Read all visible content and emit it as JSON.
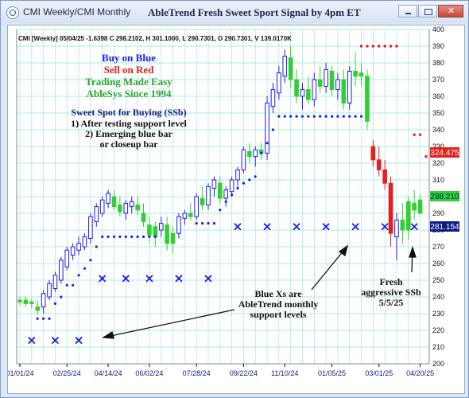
{
  "window": {
    "app_title": "CMI Weekly/CMI Monthly",
    "center_title": "AbleTrend Fresh Sweet Sport Signal by 4pm ET"
  },
  "header": {
    "info": "CMI [Weekly] 05/04/25 -1.6398 C 298.2102, H 301.1000, L 290.7301, O 290.7301, V 139.0170K"
  },
  "legend_block": {
    "buy": "Buy on Blue",
    "sell": "Sell on Red",
    "trading": "Trading Made Easy",
    "since": "AbleSys Since 1994",
    "ssb_title": "Sweet Spot for Buying (SSb)",
    "ssb_1": "1) After testing support level",
    "ssb_2": "2) Emerging blue bar",
    "ssb_3": "or closeup bar"
  },
  "annotations": {
    "blue_x_1": "Blue Xs are",
    "blue_x_2": "AbleTrend monthly",
    "blue_x_3": "support levels",
    "fresh_1": "Fresh",
    "fresh_2": "aggressive SSb",
    "fresh_3": "5/5/25"
  },
  "price_labels": {
    "red": "324.475",
    "green": "298.210",
    "navy": "281.154"
  },
  "colors": {
    "blue": "#1a1aee",
    "red": "#e41f1f",
    "green": "#2fd12f",
    "navy": "#0c1a86",
    "grid": "#8fe3e3"
  },
  "chart_data": {
    "type": "candlestick",
    "title": "AbleTrend Fresh Sweet Sport Signal by 4pm ET",
    "symbol": "CMI",
    "period": "Weekly",
    "ylim": [
      200,
      400
    ],
    "yticks": [
      200,
      210,
      220,
      230,
      240,
      250,
      260,
      270,
      280,
      290,
      300,
      310,
      320,
      330,
      340,
      350,
      360,
      370,
      380,
      390,
      400
    ],
    "x_tick_labels": [
      "01/01/24",
      "02/25/24",
      "04/14/24",
      "06/02/24",
      "07/28/24",
      "09/22/24",
      "11/10/24",
      "01/05/25",
      "03/01/25",
      "04/20/25"
    ],
    "x_tick_index": [
      0,
      8,
      15,
      22,
      30,
      38,
      45,
      53,
      61,
      68
    ],
    "candles": [
      {
        "o": 237,
        "h": 240,
        "l": 235,
        "c": 238,
        "col": "g"
      },
      {
        "o": 236,
        "h": 240,
        "l": 234,
        "c": 238,
        "col": "g"
      },
      {
        "o": 237,
        "h": 239,
        "l": 233,
        "c": 236,
        "col": "g"
      },
      {
        "o": 232,
        "h": 238,
        "l": 229,
        "c": 234,
        "col": "g"
      },
      {
        "o": 234,
        "h": 244,
        "l": 230,
        "c": 242,
        "col": "b"
      },
      {
        "o": 240,
        "h": 250,
        "l": 238,
        "c": 248,
        "col": "b"
      },
      {
        "o": 245,
        "h": 255,
        "l": 243,
        "c": 253,
        "col": "b"
      },
      {
        "o": 250,
        "h": 264,
        "l": 248,
        "c": 262,
        "col": "b"
      },
      {
        "o": 258,
        "h": 270,
        "l": 256,
        "c": 268,
        "col": "b"
      },
      {
        "o": 265,
        "h": 272,
        "l": 262,
        "c": 270,
        "col": "b"
      },
      {
        "o": 268,
        "h": 276,
        "l": 265,
        "c": 272,
        "col": "b"
      },
      {
        "o": 270,
        "h": 278,
        "l": 268,
        "c": 276,
        "col": "b"
      },
      {
        "o": 275,
        "h": 290,
        "l": 272,
        "c": 288,
        "col": "b"
      },
      {
        "o": 285,
        "h": 296,
        "l": 282,
        "c": 294,
        "col": "b"
      },
      {
        "o": 290,
        "h": 300,
        "l": 288,
        "c": 298,
        "col": "b"
      },
      {
        "o": 296,
        "h": 304,
        "l": 293,
        "c": 302,
        "col": "b"
      },
      {
        "o": 300,
        "h": 304,
        "l": 292,
        "c": 294,
        "col": "g"
      },
      {
        "o": 295,
        "h": 300,
        "l": 288,
        "c": 291,
        "col": "g"
      },
      {
        "o": 290,
        "h": 298,
        "l": 286,
        "c": 296,
        "col": "b"
      },
      {
        "o": 294,
        "h": 300,
        "l": 290,
        "c": 297,
        "col": "b"
      },
      {
        "o": 295,
        "h": 300,
        "l": 289,
        "c": 292,
        "col": "g"
      },
      {
        "o": 290,
        "h": 296,
        "l": 282,
        "c": 285,
        "col": "g"
      },
      {
        "o": 283,
        "h": 288,
        "l": 272,
        "c": 277,
        "col": "g"
      },
      {
        "o": 276,
        "h": 285,
        "l": 270,
        "c": 282,
        "col": "g"
      },
      {
        "o": 280,
        "h": 288,
        "l": 276,
        "c": 284,
        "col": "b"
      },
      {
        "o": 283,
        "h": 288,
        "l": 268,
        "c": 272,
        "col": "g"
      },
      {
        "o": 272,
        "h": 282,
        "l": 266,
        "c": 278,
        "col": "g"
      },
      {
        "o": 278,
        "h": 290,
        "l": 275,
        "c": 288,
        "col": "b"
      },
      {
        "o": 287,
        "h": 292,
        "l": 283,
        "c": 290,
        "col": "b"
      },
      {
        "o": 290,
        "h": 296,
        "l": 286,
        "c": 288,
        "col": "g"
      },
      {
        "o": 288,
        "h": 302,
        "l": 286,
        "c": 300,
        "col": "b"
      },
      {
        "o": 299,
        "h": 306,
        "l": 292,
        "c": 295,
        "col": "g"
      },
      {
        "o": 295,
        "h": 308,
        "l": 292,
        "c": 306,
        "col": "b"
      },
      {
        "o": 305,
        "h": 312,
        "l": 300,
        "c": 310,
        "col": "b"
      },
      {
        "o": 308,
        "h": 312,
        "l": 296,
        "c": 299,
        "col": "g"
      },
      {
        "o": 299,
        "h": 306,
        "l": 294,
        "c": 304,
        "col": "b"
      },
      {
        "o": 303,
        "h": 312,
        "l": 300,
        "c": 310,
        "col": "b"
      },
      {
        "o": 310,
        "h": 318,
        "l": 306,
        "c": 316,
        "col": "b"
      },
      {
        "o": 316,
        "h": 330,
        "l": 314,
        "c": 328,
        "col": "b"
      },
      {
        "o": 327,
        "h": 332,
        "l": 320,
        "c": 324,
        "col": "g"
      },
      {
        "o": 324,
        "h": 330,
        "l": 318,
        "c": 328,
        "col": "b"
      },
      {
        "o": 328,
        "h": 332,
        "l": 322,
        "c": 326,
        "col": "g"
      },
      {
        "o": 326,
        "h": 360,
        "l": 322,
        "c": 356,
        "col": "b"
      },
      {
        "o": 354,
        "h": 368,
        "l": 350,
        "c": 364,
        "col": "b"
      },
      {
        "o": 362,
        "h": 378,
        "l": 358,
        "c": 374,
        "col": "b"
      },
      {
        "o": 372,
        "h": 388,
        "l": 368,
        "c": 384,
        "col": "b"
      },
      {
        "o": 383,
        "h": 390,
        "l": 365,
        "c": 370,
        "col": "g"
      },
      {
        "o": 370,
        "h": 376,
        "l": 356,
        "c": 360,
        "col": "g"
      },
      {
        "o": 360,
        "h": 368,
        "l": 352,
        "c": 364,
        "col": "b"
      },
      {
        "o": 364,
        "h": 372,
        "l": 355,
        "c": 358,
        "col": "g"
      },
      {
        "o": 358,
        "h": 374,
        "l": 354,
        "c": 370,
        "col": "b"
      },
      {
        "o": 370,
        "h": 378,
        "l": 362,
        "c": 366,
        "col": "g"
      },
      {
        "o": 366,
        "h": 380,
        "l": 362,
        "c": 376,
        "col": "b"
      },
      {
        "o": 375,
        "h": 378,
        "l": 360,
        "c": 364,
        "col": "g"
      },
      {
        "o": 364,
        "h": 374,
        "l": 358,
        "c": 370,
        "col": "b"
      },
      {
        "o": 370,
        "h": 376,
        "l": 352,
        "c": 356,
        "col": "g"
      },
      {
        "o": 356,
        "h": 378,
        "l": 352,
        "c": 375,
        "col": "b"
      },
      {
        "o": 375,
        "h": 386,
        "l": 366,
        "c": 372,
        "col": "g"
      },
      {
        "o": 372,
        "h": 380,
        "l": 366,
        "c": 374,
        "col": "g"
      },
      {
        "o": 372,
        "h": 376,
        "l": 340,
        "c": 345,
        "col": "g"
      },
      {
        "o": 330,
        "h": 334,
        "l": 318,
        "c": 322,
        "col": "r"
      },
      {
        "o": 322,
        "h": 330,
        "l": 312,
        "c": 316,
        "col": "r"
      },
      {
        "o": 316,
        "h": 322,
        "l": 304,
        "c": 308,
        "col": "r"
      },
      {
        "o": 308,
        "h": 312,
        "l": 270,
        "c": 278,
        "col": "r"
      },
      {
        "o": 276,
        "h": 290,
        "l": 262,
        "c": 286,
        "col": "b"
      },
      {
        "o": 286,
        "h": 296,
        "l": 272,
        "c": 280,
        "col": "g"
      },
      {
        "o": 280,
        "h": 300,
        "l": 274,
        "c": 297,
        "col": "g"
      },
      {
        "o": 292,
        "h": 304,
        "l": 286,
        "c": 296,
        "col": "g"
      },
      {
        "o": 290,
        "h": 301,
        "l": 290,
        "c": 298,
        "col": "g"
      }
    ],
    "blue_dots": [
      {
        "i": 3,
        "v": 227
      },
      {
        "i": 4,
        "v": 227
      },
      {
        "i": 5,
        "v": 227
      },
      {
        "i": 6,
        "v": 236
      },
      {
        "i": 7,
        "v": 240
      },
      {
        "i": 8,
        "v": 247
      },
      {
        "i": 9,
        "v": 247
      },
      {
        "i": 10,
        "v": 253
      },
      {
        "i": 11,
        "v": 257
      },
      {
        "i": 12,
        "v": 262
      },
      {
        "i": 13,
        "v": 270
      },
      {
        "i": 14,
        "v": 276
      },
      {
        "i": 15,
        "v": 276
      },
      {
        "i": 16,
        "v": 276
      },
      {
        "i": 17,
        "v": 276
      },
      {
        "i": 18,
        "v": 276
      },
      {
        "i": 19,
        "v": 276
      },
      {
        "i": 20,
        "v": 276
      },
      {
        "i": 21,
        "v": 276
      },
      {
        "i": 22,
        "v": 276
      },
      {
        "i": 23,
        "v": 276
      },
      {
        "i": 30,
        "v": 284
      },
      {
        "i": 31,
        "v": 284
      },
      {
        "i": 32,
        "v": 284
      },
      {
        "i": 33,
        "v": 284
      },
      {
        "i": 34,
        "v": 292
      },
      {
        "i": 35,
        "v": 297
      },
      {
        "i": 36,
        "v": 301
      },
      {
        "i": 37,
        "v": 305
      },
      {
        "i": 38,
        "v": 308
      },
      {
        "i": 39,
        "v": 310
      },
      {
        "i": 40,
        "v": 312
      },
      {
        "i": 41,
        "v": 326
      },
      {
        "i": 42,
        "v": 332
      },
      {
        "i": 43,
        "v": 340
      },
      {
        "i": 44,
        "v": 348
      },
      {
        "i": 45,
        "v": 348
      },
      {
        "i": 46,
        "v": 348
      },
      {
        "i": 47,
        "v": 348
      },
      {
        "i": 48,
        "v": 348
      },
      {
        "i": 49,
        "v": 348
      },
      {
        "i": 50,
        "v": 348
      },
      {
        "i": 51,
        "v": 348
      },
      {
        "i": 52,
        "v": 348
      },
      {
        "i": 53,
        "v": 348
      },
      {
        "i": 54,
        "v": 348
      },
      {
        "i": 55,
        "v": 348
      },
      {
        "i": 56,
        "v": 348
      },
      {
        "i": 57,
        "v": 348
      },
      {
        "i": 58,
        "v": 348
      }
    ],
    "red_dots": [
      {
        "i": 58,
        "v": 390
      },
      {
        "i": 59,
        "v": 390
      },
      {
        "i": 60,
        "v": 390
      },
      {
        "i": 61,
        "v": 390
      },
      {
        "i": 62,
        "v": 390
      },
      {
        "i": 63,
        "v": 390
      },
      {
        "i": 64,
        "v": 390
      },
      {
        "i": 67,
        "v": 337
      },
      {
        "i": 68,
        "v": 337
      },
      {
        "i": 69,
        "v": 324
      }
    ],
    "support_x": [
      {
        "i": 2,
        "v": 214
      },
      {
        "i": 6,
        "v": 214
      },
      {
        "i": 10,
        "v": 214
      },
      {
        "i": 14,
        "v": 251
      },
      {
        "i": 18,
        "v": 251
      },
      {
        "i": 22,
        "v": 251
      },
      {
        "i": 27,
        "v": 251
      },
      {
        "i": 32,
        "v": 251
      },
      {
        "i": 37,
        "v": 282
      },
      {
        "i": 42,
        "v": 282
      },
      {
        "i": 47,
        "v": 282
      },
      {
        "i": 52,
        "v": 282
      },
      {
        "i": 57,
        "v": 282
      },
      {
        "i": 62,
        "v": 282
      },
      {
        "i": 67,
        "v": 282
      },
      {
        "i": 72,
        "v": 282
      }
    ]
  }
}
